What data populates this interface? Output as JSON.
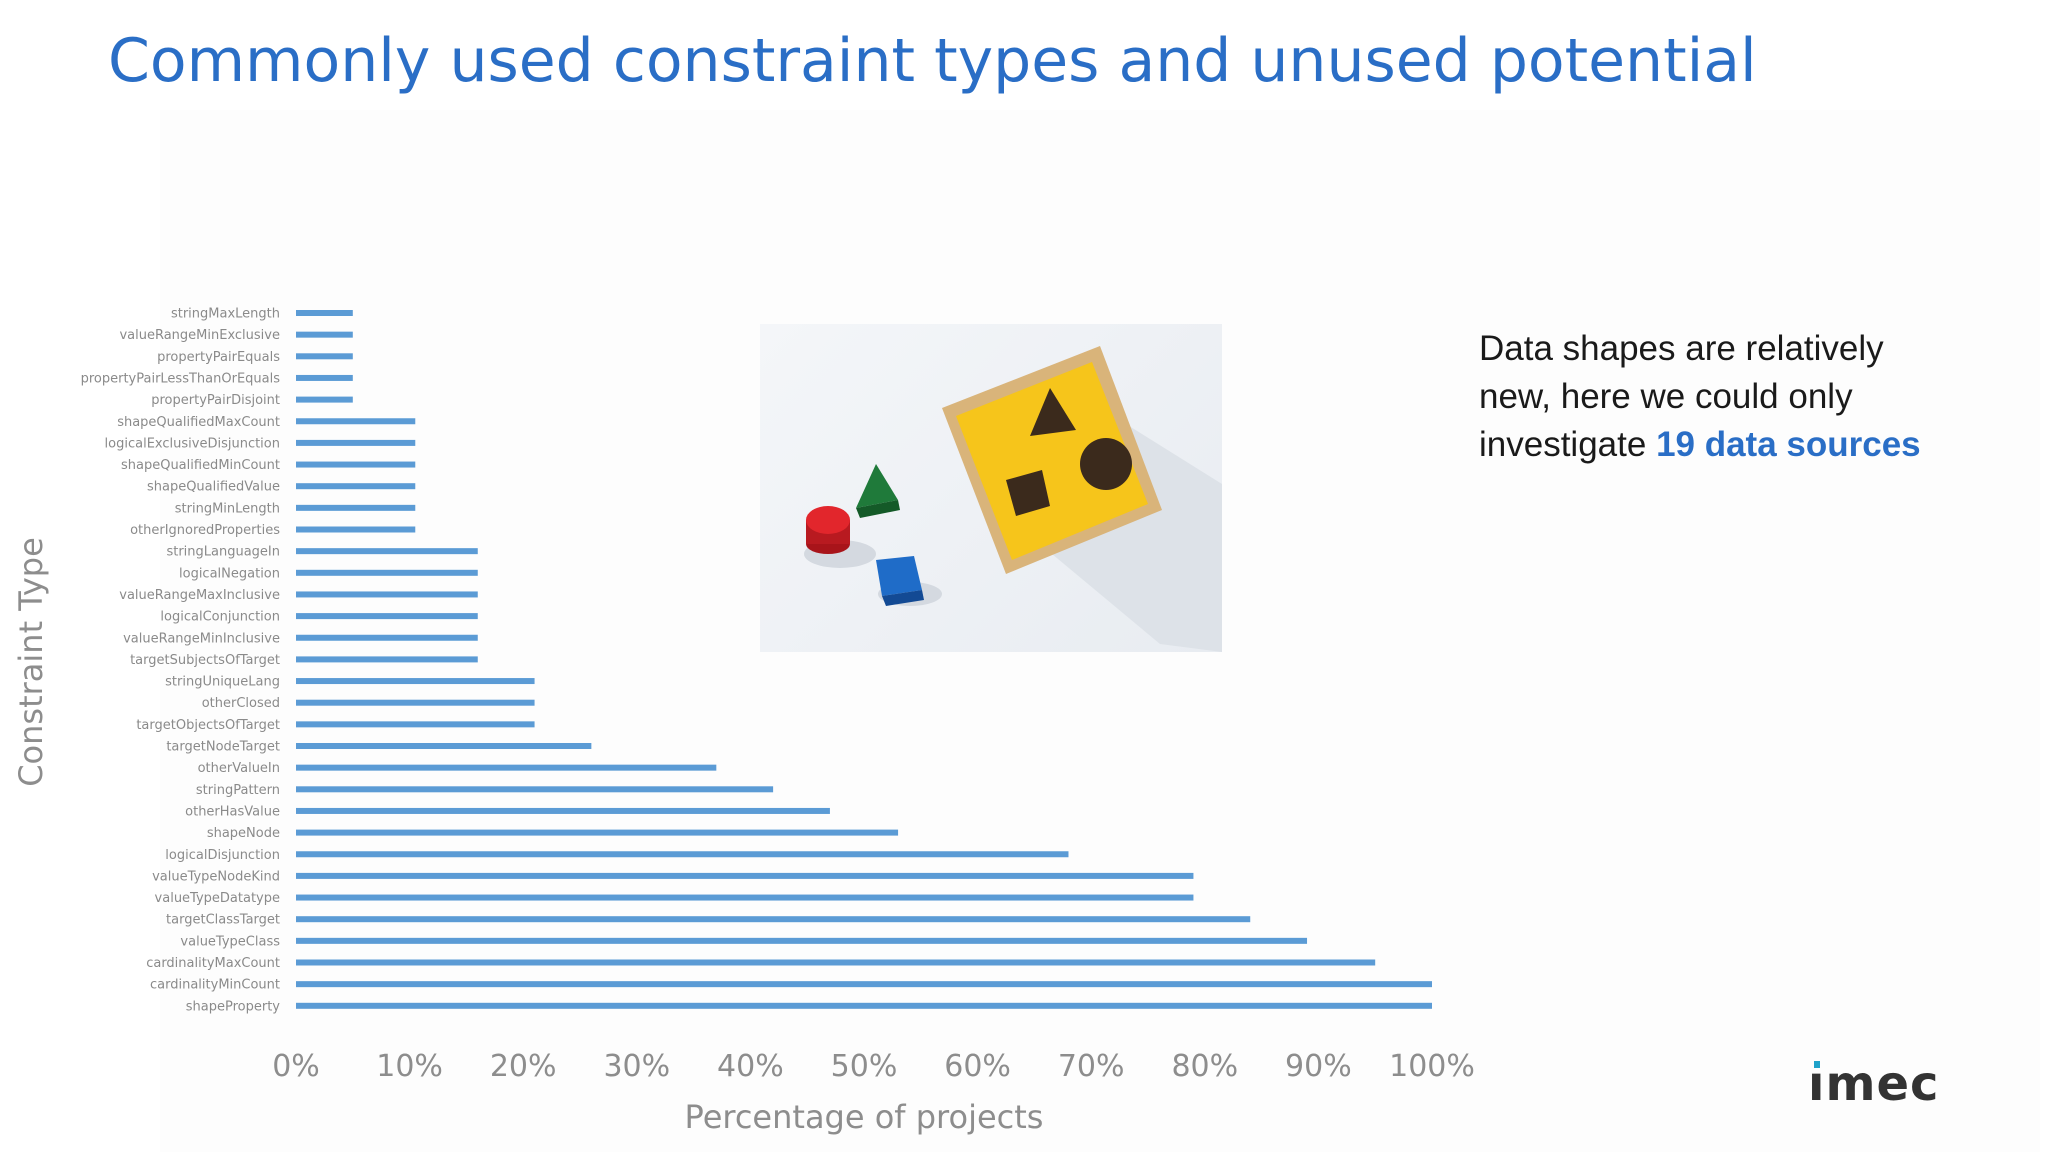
{
  "slide": {
    "title": "Commonly used constraint types and unused potential",
    "note_text": "Data shapes are relatively new, here we could only investigate ",
    "note_highlight": "19 data sources",
    "logo": "ımec",
    "colors": {
      "title": "#2a6ec6",
      "bar": "#5b9bd5",
      "highlight": "#2a6ec6",
      "logo_dot": "#1fa2c9"
    }
  },
  "photo": {
    "description_icon": "shape-sorter-toy-icon"
  },
  "chart_data": {
    "type": "bar",
    "orientation": "horizontal",
    "title": "",
    "xlabel": "Percentage of projects",
    "ylabel": "Constraint Type",
    "xlim": [
      0,
      100
    ],
    "xticks": [
      "0%",
      "10%",
      "20%",
      "30%",
      "40%",
      "50%",
      "60%",
      "70%",
      "80%",
      "90%",
      "100%"
    ],
    "grid": false,
    "categories": [
      "stringMaxLength",
      "valueRangeMinExclusive",
      "propertyPairEquals",
      "propertyPairLessThanOrEquals",
      "propertyPairDisjoint",
      "shapeQualifiedMaxCount",
      "logicalExclusiveDisjunction",
      "shapeQualifiedMinCount",
      "shapeQualifiedValue",
      "stringMinLength",
      "otherIgnoredProperties",
      "stringLanguageIn",
      "logicalNegation",
      "valueRangeMaxInclusive",
      "logicalConjunction",
      "valueRangeMinInclusive",
      "targetSubjectsOfTarget",
      "stringUniqueLang",
      "otherClosed",
      "targetObjectsOfTarget",
      "targetNodeTarget",
      "otherValueIn",
      "stringPattern",
      "otherHasValue",
      "shapeNode",
      "logicalDisjunction",
      "valueTypeNodeKind",
      "valueTypeDatatype",
      "targetClassTarget",
      "valueTypeClass",
      "cardinalityMaxCount",
      "cardinalityMinCount",
      "shapeProperty"
    ],
    "values": [
      5,
      5,
      5,
      5,
      5,
      10.5,
      10.5,
      10.5,
      10.5,
      10.5,
      10.5,
      16,
      16,
      16,
      16,
      16,
      16,
      21,
      21,
      21,
      26,
      37,
      42,
      47,
      53,
      68,
      79,
      79,
      84,
      89,
      95,
      100,
      100
    ]
  }
}
